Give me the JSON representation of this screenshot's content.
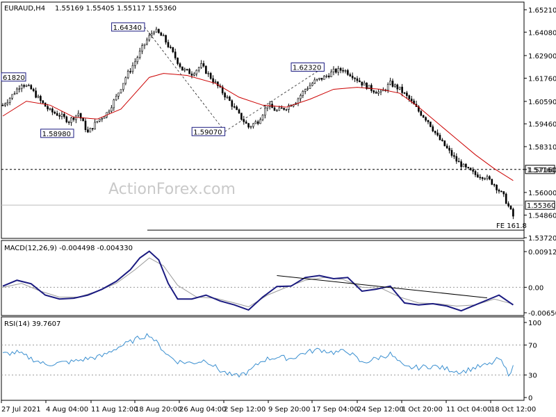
{
  "header": {
    "symbol": "EURAUD,H4",
    "ohlc": "1.55169 1.55405 1.55117 1.55360"
  },
  "watermark": "ActionForex.com",
  "chart_data": [
    {
      "type": "candlestick",
      "title": "EURAUD,H4",
      "ylim": [
        1.5372,
        1.6521
      ],
      "y_ticks": [
        "1.65210",
        "1.64080",
        "1.62900",
        "1.61760",
        "1.60590",
        "1.59460",
        "1.58310",
        "1.57160",
        "1.56000",
        "1.54860",
        "1.53720"
      ],
      "x_ticks": [
        "27 Jul 2021",
        "4 Aug 04:00",
        "11 Aug 12:00",
        "18 Aug 20:00",
        "26 Aug 04:00",
        "2 Sep 12:00",
        "9 Sep 20:00",
        "17 Sep 04:00",
        "24 Sep 12:00",
        "1 Oct 20:00",
        "11 Oct 04:00",
        "18 Oct 12:00"
      ],
      "close_path": [
        [
          0,
          1.604
        ],
        [
          4,
          1.609
        ],
        [
          8,
          1.615
        ],
        [
          12,
          1.612
        ],
        [
          16,
          1.606
        ],
        [
          20,
          1.601
        ],
        [
          24,
          1.599
        ],
        [
          28,
          1.596
        ],
        [
          32,
          1.6
        ],
        [
          36,
          1.59
        ],
        [
          40,
          1.596
        ],
        [
          44,
          1.6
        ],
        [
          48,
          1.608
        ],
        [
          52,
          1.618
        ],
        [
          56,
          1.626
        ],
        [
          60,
          1.635
        ],
        [
          64,
          1.642
        ],
        [
          68,
          1.638
        ],
        [
          72,
          1.63
        ],
        [
          76,
          1.622
        ],
        [
          80,
          1.62
        ],
        [
          84,
          1.624
        ],
        [
          88,
          1.618
        ],
        [
          92,
          1.612
        ],
        [
          96,
          1.606
        ],
        [
          100,
          1.599
        ],
        [
          104,
          1.593
        ],
        [
          108,
          1.596
        ],
        [
          112,
          1.604
        ],
        [
          116,
          1.601
        ],
        [
          120,
          1.603
        ],
        [
          124,
          1.606
        ],
        [
          128,
          1.612
        ],
        [
          132,
          1.616
        ],
        [
          136,
          1.618
        ],
        [
          140,
          1.621
        ],
        [
          144,
          1.622
        ],
        [
          148,
          1.619
        ],
        [
          152,
          1.615
        ],
        [
          156,
          1.612
        ],
        [
          160,
          1.61
        ],
        [
          164,
          1.615
        ],
        [
          168,
          1.612
        ],
        [
          172,
          1.607
        ],
        [
          176,
          1.601
        ],
        [
          180,
          1.596
        ],
        [
          184,
          1.588
        ],
        [
          188,
          1.582
        ],
        [
          192,
          1.576
        ],
        [
          196,
          1.572
        ],
        [
          200,
          1.569
        ],
        [
          204,
          1.568
        ],
        [
          208,
          1.564
        ],
        [
          212,
          1.558
        ],
        [
          216,
          1.548
        ]
      ],
      "sma": [
        [
          0,
          1.5985
        ],
        [
          10,
          1.606
        ],
        [
          20,
          1.604
        ],
        [
          30,
          1.598
        ],
        [
          40,
          1.597
        ],
        [
          50,
          1.602
        ],
        [
          56,
          1.61
        ],
        [
          62,
          1.618
        ],
        [
          68,
          1.62
        ],
        [
          78,
          1.619
        ],
        [
          90,
          1.615
        ],
        [
          100,
          1.608
        ],
        [
          110,
          1.604
        ],
        [
          120,
          1.603
        ],
        [
          130,
          1.607
        ],
        [
          140,
          1.612
        ],
        [
          150,
          1.613
        ],
        [
          160,
          1.612
        ],
        [
          168,
          1.61
        ],
        [
          176,
          1.603
        ],
        [
          184,
          1.595
        ],
        [
          192,
          1.587
        ],
        [
          200,
          1.579
        ],
        [
          208,
          1.572
        ],
        [
          216,
          1.566
        ]
      ],
      "horizontal_levels": [
        {
          "value": 1.5716,
          "label": "1.57160",
          "style": "dashed"
        },
        {
          "value": 1.5536,
          "label": "1.55360",
          "style": "solid"
        }
      ],
      "price_labels": [
        {
          "x": 60,
          "y": 1.6434,
          "text": "1.64340"
        },
        {
          "x": 4,
          "y": 1.6182,
          "text": "61820"
        },
        {
          "x": 30,
          "y": 1.5898,
          "text": "1.58980"
        },
        {
          "x": 94,
          "y": 1.5907,
          "text": "1.59070"
        },
        {
          "x": 136,
          "y": 1.6232,
          "text": "1.62320"
        }
      ],
      "fe_line": {
        "y": 1.541,
        "label": "FE 161.8"
      }
    },
    {
      "type": "line",
      "title": "MACD(12,26,9) -0.004498 -0.004330",
      "ylim": [
        -0.006506,
        0.00912
      ],
      "y_ticks": [
        "0.00912",
        "0.00",
        "-0.006506"
      ],
      "macd": [
        [
          0,
          0.0003
        ],
        [
          6,
          0.0018
        ],
        [
          12,
          0.0009
        ],
        [
          18,
          -0.002
        ],
        [
          24,
          -0.003
        ],
        [
          30,
          -0.0028
        ],
        [
          36,
          -0.002
        ],
        [
          42,
          -0.0005
        ],
        [
          48,
          0.0015
        ],
        [
          54,
          0.0045
        ],
        [
          58,
          0.0075
        ],
        [
          62,
          0.0092
        ],
        [
          66,
          0.007
        ],
        [
          70,
          0.001
        ],
        [
          74,
          -0.003
        ],
        [
          80,
          -0.003
        ],
        [
          86,
          -0.002
        ],
        [
          92,
          -0.0035
        ],
        [
          98,
          -0.0045
        ],
        [
          104,
          -0.0058
        ],
        [
          110,
          -0.0025
        ],
        [
          116,
          0.0002
        ],
        [
          122,
          0.0003
        ],
        [
          128,
          0.0025
        ],
        [
          134,
          0.003
        ],
        [
          140,
          0.0022
        ],
        [
          146,
          0.0025
        ],
        [
          152,
          -0.001
        ],
        [
          158,
          -0.0005
        ],
        [
          164,
          0.0003
        ],
        [
          170,
          -0.004
        ],
        [
          176,
          -0.0045
        ],
        [
          182,
          -0.0042
        ],
        [
          188,
          -0.0048
        ],
        [
          194,
          -0.006
        ],
        [
          200,
          -0.0045
        ],
        [
          206,
          -0.003
        ],
        [
          210,
          -0.002
        ],
        [
          216,
          -0.0045
        ]
      ],
      "signal": [
        [
          0,
          0.0
        ],
        [
          8,
          0.001
        ],
        [
          16,
          -0.001
        ],
        [
          24,
          -0.0025
        ],
        [
          32,
          -0.0025
        ],
        [
          40,
          -0.001
        ],
        [
          48,
          0.001
        ],
        [
          56,
          0.0045
        ],
        [
          62,
          0.0075
        ],
        [
          68,
          0.0055
        ],
        [
          74,
          0.0005
        ],
        [
          82,
          -0.0025
        ],
        [
          90,
          -0.0028
        ],
        [
          98,
          -0.004
        ],
        [
          104,
          -0.005
        ],
        [
          112,
          -0.002
        ],
        [
          120,
          0.0
        ],
        [
          128,
          0.0018
        ],
        [
          136,
          0.0025
        ],
        [
          144,
          0.002
        ],
        [
          152,
          0.0
        ],
        [
          160,
          -0.0002
        ],
        [
          168,
          -0.0025
        ],
        [
          176,
          -0.004
        ],
        [
          184,
          -0.0042
        ],
        [
          192,
          -0.0048
        ],
        [
          200,
          -0.0045
        ],
        [
          208,
          -0.003
        ],
        [
          216,
          -0.0043
        ]
      ],
      "trendline": [
        [
          116,
          0.003
        ],
        [
          205,
          -0.0027
        ]
      ]
    },
    {
      "type": "line",
      "title": "RSI(14) 39.7607",
      "ylim": [
        0,
        100
      ],
      "y_ticks": [
        "100",
        "70",
        "30",
        "0"
      ],
      "levels": [
        70,
        30
      ],
      "values": [
        [
          0,
          58
        ],
        [
          6,
          60
        ],
        [
          12,
          52
        ],
        [
          18,
          44
        ],
        [
          24,
          46
        ],
        [
          30,
          48
        ],
        [
          36,
          52
        ],
        [
          42,
          55
        ],
        [
          48,
          66
        ],
        [
          54,
          74
        ],
        [
          58,
          80
        ],
        [
          62,
          84
        ],
        [
          66,
          70
        ],
        [
          70,
          56
        ],
        [
          74,
          48
        ],
        [
          80,
          46
        ],
        [
          86,
          50
        ],
        [
          92,
          36
        ],
        [
          98,
          28
        ],
        [
          104,
          34
        ],
        [
          110,
          50
        ],
        [
          116,
          54
        ],
        [
          122,
          52
        ],
        [
          128,
          60
        ],
        [
          134,
          64
        ],
        [
          140,
          60
        ],
        [
          146,
          62
        ],
        [
          152,
          46
        ],
        [
          158,
          52
        ],
        [
          164,
          58
        ],
        [
          170,
          40
        ],
        [
          176,
          40
        ],
        [
          182,
          42
        ],
        [
          188,
          38
        ],
        [
          194,
          34
        ],
        [
          200,
          40
        ],
        [
          206,
          44
        ],
        [
          210,
          52
        ],
        [
          214,
          32
        ],
        [
          216,
          40
        ]
      ]
    }
  ]
}
